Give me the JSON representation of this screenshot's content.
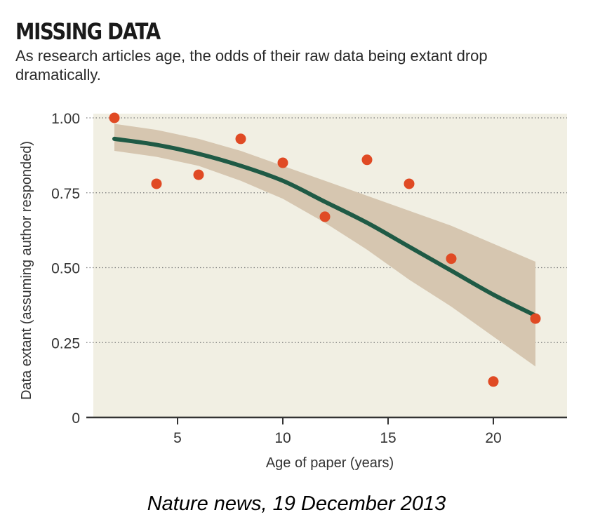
{
  "header": {
    "title": "MISSING DATA",
    "subtitle": "As research articles age, the odds of their raw data being extant drop dramatically."
  },
  "caption": "Nature news, 19 December 2013",
  "chart_data": {
    "type": "scatter",
    "title": "MISSING DATA",
    "xlabel": "Age of paper (years)",
    "ylabel": "Data extant (assuming author responded)",
    "xlim": [
      1,
      23.5
    ],
    "ylim": [
      0,
      1.0
    ],
    "x_ticks": [
      5,
      10,
      15,
      20
    ],
    "x_tick_labels": [
      "5",
      "10",
      "15",
      "20"
    ],
    "y_ticks": [
      0,
      0.25,
      0.5,
      0.75,
      1.0
    ],
    "y_tick_labels": [
      "0",
      "0.25",
      "0.50",
      "0.75",
      "1.00"
    ],
    "grid": "horizontal dotted",
    "points": [
      {
        "x": 2,
        "y": 1.0
      },
      {
        "x": 4,
        "y": 0.78
      },
      {
        "x": 6,
        "y": 0.81
      },
      {
        "x": 8,
        "y": 0.93
      },
      {
        "x": 10,
        "y": 0.85
      },
      {
        "x": 12,
        "y": 0.67
      },
      {
        "x": 14,
        "y": 0.86
      },
      {
        "x": 16,
        "y": 0.78
      },
      {
        "x": 18,
        "y": 0.53
      },
      {
        "x": 20,
        "y": 0.12
      },
      {
        "x": 22,
        "y": 0.33
      }
    ],
    "fit_curve": {
      "x": [
        2,
        4,
        6,
        8,
        10,
        12,
        14,
        16,
        18,
        20,
        22
      ],
      "y": [
        0.93,
        0.91,
        0.88,
        0.84,
        0.79,
        0.72,
        0.65,
        0.57,
        0.49,
        0.41,
        0.34
      ]
    },
    "confidence_band": {
      "x": [
        2,
        4,
        6,
        8,
        10,
        12,
        14,
        16,
        18,
        20,
        22
      ],
      "upper": [
        0.98,
        0.96,
        0.93,
        0.89,
        0.84,
        0.79,
        0.74,
        0.69,
        0.64,
        0.58,
        0.52
      ],
      "lower": [
        0.89,
        0.87,
        0.84,
        0.79,
        0.73,
        0.65,
        0.56,
        0.46,
        0.37,
        0.27,
        0.17
      ]
    },
    "colors": {
      "plot_background": "#f1efe3",
      "band": "#d6c6b0",
      "curve": "#1f5a45",
      "points": "#e04a24",
      "grid": "#7a7a7a",
      "axis": "#333333"
    }
  }
}
